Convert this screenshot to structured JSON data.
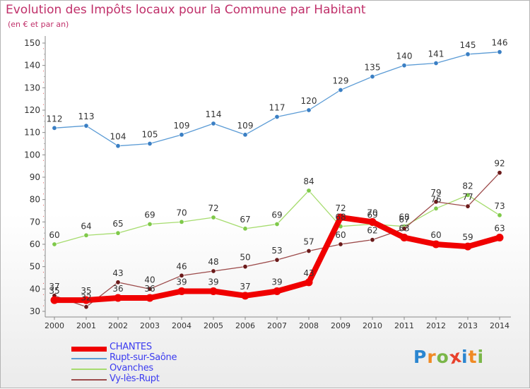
{
  "title": "Evolution des Impôts locaux pour la Commune par Habitant",
  "subtitle": "(en € et par an)",
  "logo": {
    "letters": [
      "P",
      "r",
      "o",
      "x",
      "i",
      "t",
      "i"
    ],
    "colors": [
      "#2b86d0",
      "#f08a24",
      "#7ab648",
      "#e8412c",
      "#2b86d0",
      "#f08a24",
      "#7ab648"
    ]
  },
  "chart_data": {
    "type": "line",
    "title": "Evolution des Impôts locaux pour la Commune par Habitant",
    "subtitle": "(en € et par an)",
    "categories": [
      "2000",
      "2001",
      "2002",
      "2003",
      "2004",
      "2005",
      "2006",
      "2007",
      "2008",
      "2009",
      "2010",
      "2011",
      "2012",
      "2013",
      "2014"
    ],
    "ylim": [
      30,
      150
    ],
    "yticks": [
      30,
      40,
      50,
      60,
      70,
      80,
      90,
      100,
      110,
      120,
      130,
      140,
      150
    ],
    "grid": false,
    "legend": "bottom-left",
    "series": [
      {
        "name": "Rupt-sur-Saône",
        "color": "#5b9bd5",
        "marker": "#3a7fc4",
        "width": "thin",
        "values": [
          112,
          113,
          104,
          105,
          109,
          114,
          109,
          117,
          120,
          129,
          135,
          140,
          141,
          145,
          146
        ]
      },
      {
        "name": "Ovanches",
        "color": "#a6dc6e",
        "marker": "#7fc94a",
        "width": "thin",
        "values": [
          60,
          64,
          65,
          69,
          70,
          72,
          67,
          69,
          84,
          68,
          69,
          68,
          76,
          82,
          73
        ]
      },
      {
        "name": "Vy-lès-Rupt",
        "color": "#9c4a4a",
        "marker": "#6b1a1a",
        "width": "thin",
        "values": [
          37,
          32,
          43,
          40,
          46,
          48,
          50,
          53,
          57,
          60,
          62,
          67,
          79,
          77,
          92
        ]
      },
      {
        "name": "CHANTES",
        "color": "#f00000",
        "marker": "#f00000",
        "width": "thick",
        "values": [
          35,
          35,
          36,
          36,
          39,
          39,
          37,
          39,
          43,
          72,
          70,
          63,
          60,
          59,
          63
        ]
      }
    ],
    "data_labels": {
      "CHANTES": [
        "35",
        "35",
        "36",
        "36",
        "39",
        "39",
        "37",
        "39",
        "43",
        "72",
        "70",
        "63",
        "60",
        "59",
        "63"
      ],
      "Rupt-sur-Saône": [
        "112",
        "113",
        "104",
        "105",
        "109",
        "114",
        "109",
        "117",
        "120",
        "129",
        "135",
        "140",
        "141",
        "145",
        "146"
      ],
      "Ovanches": [
        "60",
        "64",
        "65",
        "69",
        "70",
        "72",
        "67",
        "69",
        "84",
        "68",
        "69",
        "68",
        "76",
        "82",
        "73"
      ],
      "Vy-lès-Rupt": [
        "37",
        "32",
        "43",
        "40",
        "46",
        "48",
        "50",
        "53",
        "57",
        "60",
        "62",
        "67",
        "79",
        "77",
        "92"
      ]
    }
  },
  "legend": {
    "items": [
      {
        "label": "CHANTES",
        "color": "#f00000",
        "width": "thick"
      },
      {
        "label": "Rupt-sur-Saône",
        "color": "#5b9bd5",
        "width": "thin"
      },
      {
        "label": "Ovanches",
        "color": "#a6dc6e",
        "width": "thin"
      },
      {
        "label": "Vy-lès-Rupt",
        "color": "#9c4a4a",
        "width": "thin"
      }
    ]
  }
}
